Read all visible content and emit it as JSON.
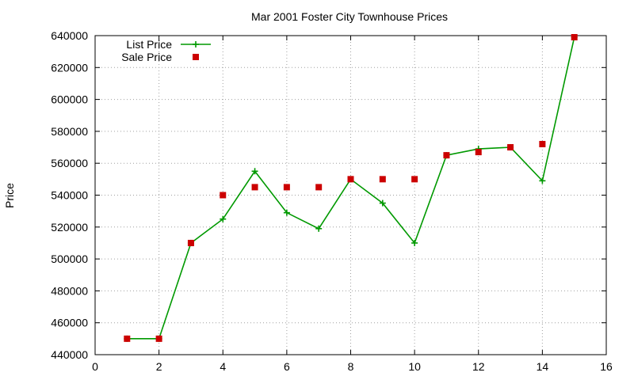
{
  "chart_data": {
    "type": "line",
    "title": "Mar 2001 Foster City Townhouse Prices",
    "xlabel": "",
    "ylabel": "Price",
    "xlim": [
      0,
      16
    ],
    "ylim": [
      440000,
      640000
    ],
    "x_ticks": [
      "0",
      "2",
      "4",
      "6",
      "8",
      "10",
      "12",
      "14",
      "16"
    ],
    "y_ticks": [
      "440000",
      "460000",
      "480000",
      "500000",
      "520000",
      "540000",
      "560000",
      "580000",
      "600000",
      "620000",
      "640000"
    ],
    "grid": true,
    "legend_position": "top-left",
    "series": [
      {
        "name": "List Price",
        "style": "line-points",
        "color": "#009900",
        "x": [
          1,
          2,
          3,
          4,
          5,
          6,
          7,
          8,
          9,
          10,
          11,
          12,
          13,
          14,
          15
        ],
        "y": [
          450000,
          450000,
          510000,
          525000,
          555000,
          529000,
          519000,
          550000,
          535000,
          510000,
          565000,
          569000,
          570000,
          549000,
          639000
        ]
      },
      {
        "name": "Sale Price",
        "style": "points",
        "color": "#cc0000",
        "x": [
          1,
          2,
          3,
          4,
          5,
          6,
          7,
          8,
          9,
          10,
          11,
          12,
          13,
          14,
          15
        ],
        "y": [
          450000,
          450000,
          510000,
          540000,
          545000,
          545000,
          545000,
          550000,
          550000,
          550000,
          565000,
          567000,
          570000,
          572000,
          639000
        ]
      }
    ]
  }
}
